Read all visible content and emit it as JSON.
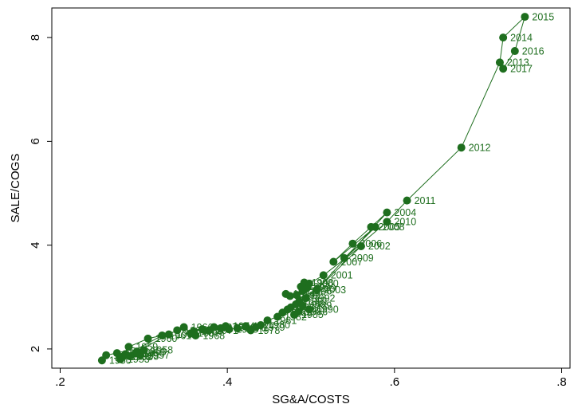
{
  "chart_data": {
    "type": "connected-scatter",
    "x_label": "SG&A/COSTS",
    "y_label": "SALE/COGS",
    "color": "#1e6e1e",
    "labels": [
      "1950",
      "1951",
      "1952",
      "1953",
      "1954",
      "1955",
      "1956",
      "1957",
      "1958",
      "1959",
      "1960",
      "1961",
      "1962",
      "1963",
      "1964",
      "1965",
      "1966",
      "1967",
      "1968",
      "1969",
      "1970",
      "1971",
      "1972",
      "1973",
      "1974",
      "1975",
      "1976",
      "1977",
      "1978",
      "1979",
      "1980",
      "1981",
      "1982",
      "1983",
      "1984",
      "1985",
      "1986",
      "1987",
      "1988",
      "1989",
      "1990",
      "1991",
      "1992",
      "1993",
      "1994",
      "1995",
      "1996",
      "1997",
      "1998",
      "1999",
      "2000",
      "2001",
      "2002",
      "2003",
      "2004",
      "2005",
      "2006",
      "2007",
      "2008",
      "2009",
      "2010",
      "2011",
      "2012",
      "2013",
      "2014",
      "2015",
      "2016",
      "2017"
    ],
    "x": [
      0.25,
      0.255,
      0.268,
      0.272,
      0.278,
      0.283,
      0.29,
      0.296,
      0.3,
      0.282,
      0.305,
      0.322,
      0.275,
      0.292,
      0.33,
      0.34,
      0.348,
      0.356,
      0.362,
      0.36,
      0.37,
      0.378,
      0.384,
      0.392,
      0.398,
      0.402,
      0.412,
      0.422,
      0.428,
      0.434,
      0.44,
      0.448,
      0.46,
      0.466,
      0.472,
      0.48,
      0.485,
      0.476,
      0.482,
      0.49,
      0.498,
      0.486,
      0.494,
      0.475,
      0.47,
      0.483,
      0.49,
      0.488,
      0.492,
      0.495,
      0.498,
      0.515,
      0.56,
      0.507,
      0.591,
      0.572,
      0.55,
      0.527,
      0.577,
      0.54,
      0.591,
      0.615,
      0.68,
      0.726,
      0.73,
      0.756,
      0.744,
      0.73
    ],
    "y": [
      1.78,
      1.88,
      1.92,
      1.8,
      1.9,
      1.86,
      1.92,
      1.88,
      1.98,
      2.04,
      2.2,
      2.26,
      1.85,
      1.95,
      2.28,
      2.36,
      2.42,
      2.3,
      2.26,
      2.34,
      2.38,
      2.36,
      2.42,
      2.4,
      2.44,
      2.38,
      2.4,
      2.44,
      2.36,
      2.42,
      2.46,
      2.55,
      2.62,
      2.7,
      2.76,
      2.66,
      2.72,
      2.8,
      2.86,
      2.84,
      2.76,
      2.92,
      2.98,
      3.02,
      3.06,
      3.04,
      3.12,
      3.2,
      3.28,
      3.17,
      3.26,
      3.42,
      3.98,
      3.14,
      4.63,
      4.35,
      4.03,
      3.68,
      4.35,
      3.75,
      4.45,
      4.86,
      5.88,
      7.52,
      8.0,
      8.4,
      7.74,
      7.4
    ],
    "xlim": [
      0.19,
      0.81
    ],
    "ylim": [
      1.63,
      8.57
    ],
    "xticks": [
      {
        "value": 0.2,
        "label": ".2"
      },
      {
        "value": 0.4,
        "label": ".4"
      },
      {
        "value": 0.6,
        "label": ".6"
      },
      {
        "value": 0.8,
        "label": ".8"
      }
    ],
    "yticks": [
      2,
      4,
      6,
      8
    ]
  }
}
